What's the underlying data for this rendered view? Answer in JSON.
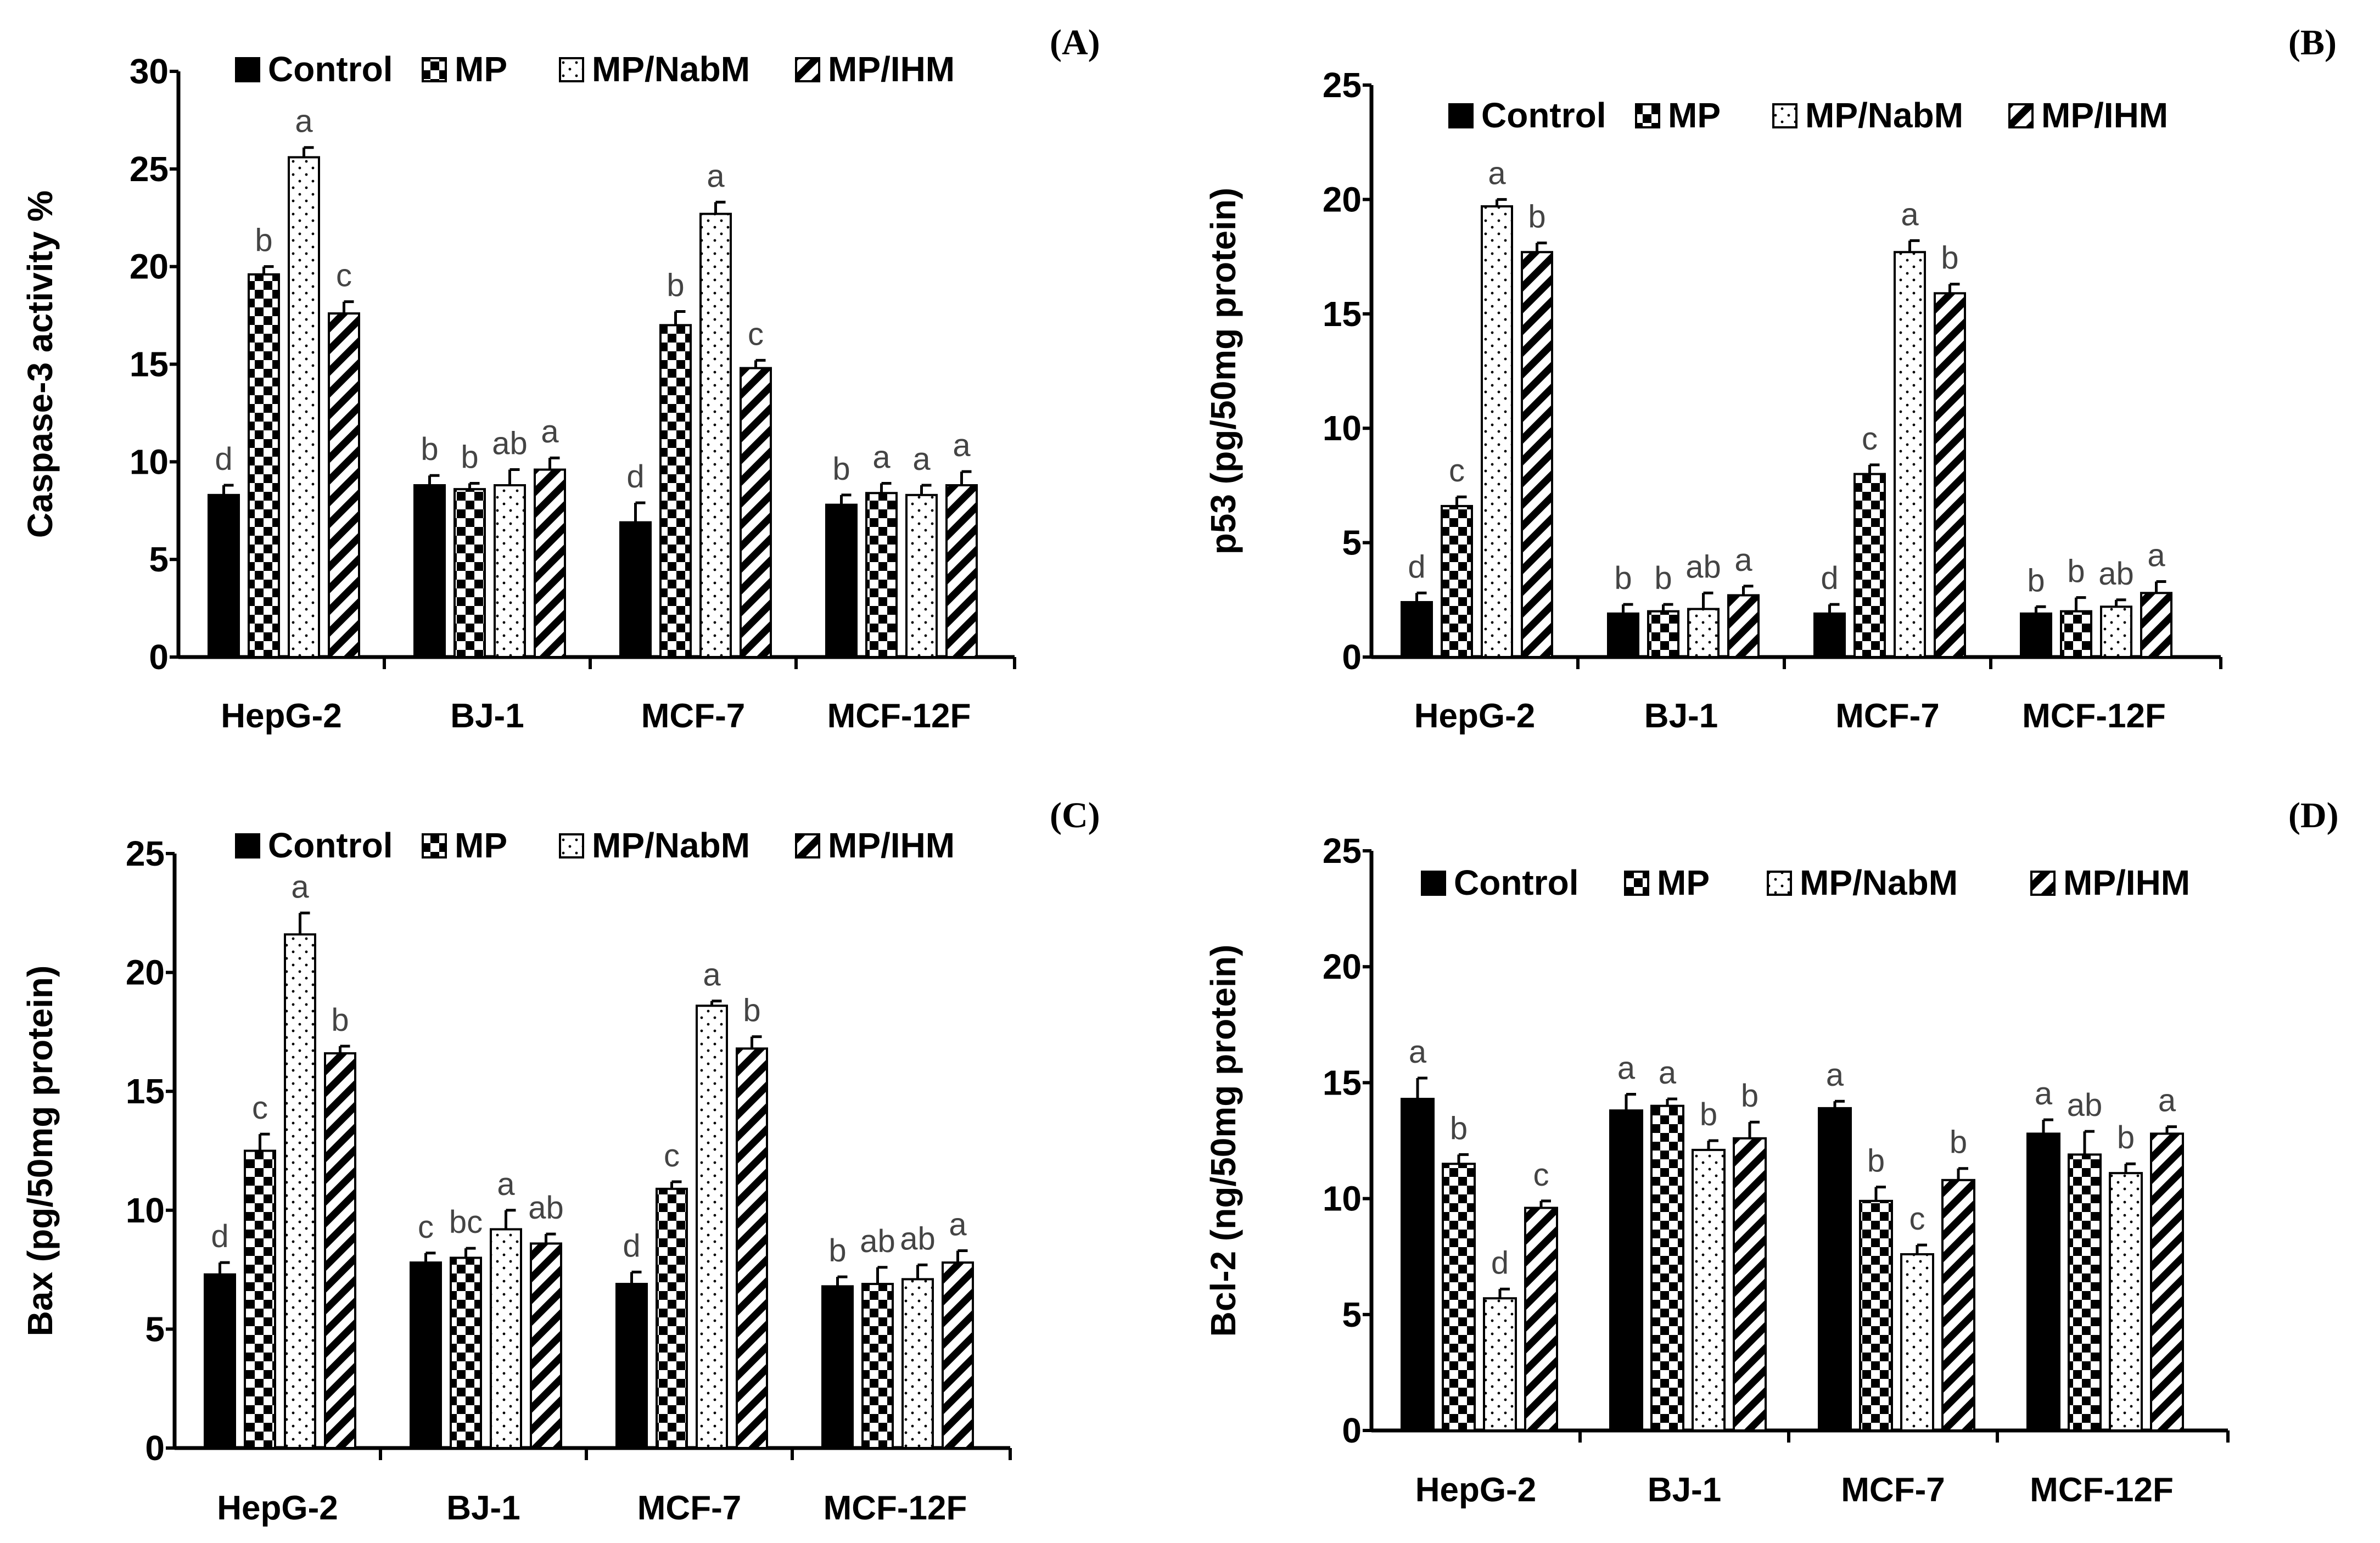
{
  "colors": {
    "ink": "#000000",
    "background": "#ffffff"
  },
  "series_names": [
    "Control",
    "MP",
    "MP/NabM",
    "MP/IHM"
  ],
  "series_patterns": [
    "solid",
    "checker",
    "dots",
    "diagonal"
  ],
  "chart_data": [
    {
      "panel": "(A)",
      "type": "bar",
      "ylabel": "Caspase-3 activity %",
      "ylim": [
        0,
        30
      ],
      "yticks": [
        0,
        5,
        10,
        15,
        20,
        25,
        30
      ],
      "legend_position": "top",
      "categories": [
        "HepG-2",
        "BJ-1",
        "MCF-7",
        "MCF-12F"
      ],
      "series": [
        {
          "name": "Control",
          "values": [
            8.3,
            8.8,
            6.9,
            7.8
          ],
          "errors": [
            0.5,
            0.5,
            1.0,
            0.5
          ],
          "letters": [
            "d",
            "b",
            "d",
            "b"
          ]
        },
        {
          "name": "MP",
          "values": [
            19.6,
            8.6,
            17.0,
            8.4
          ],
          "errors": [
            0.4,
            0.3,
            0.7,
            0.5
          ],
          "letters": [
            "b",
            "b",
            "b",
            "a"
          ]
        },
        {
          "name": "MP/NabM",
          "values": [
            25.6,
            8.8,
            22.7,
            8.3
          ],
          "errors": [
            0.5,
            0.8,
            0.6,
            0.5
          ],
          "letters": [
            "a",
            "ab",
            "a",
            "a"
          ]
        },
        {
          "name": "MP/IHM",
          "values": [
            17.6,
            9.6,
            14.8,
            8.8
          ],
          "errors": [
            0.6,
            0.6,
            0.4,
            0.7
          ],
          "letters": [
            "c",
            "a",
            "c",
            "a"
          ]
        }
      ]
    },
    {
      "panel": "(B)",
      "type": "bar",
      "ylabel": "p53 (pg/50mg protein)",
      "ylim": [
        0,
        25
      ],
      "yticks": [
        0,
        5,
        10,
        15,
        20,
        25
      ],
      "legend_position": "top",
      "categories": [
        "HepG-2",
        "BJ-1",
        "MCF-7",
        "MCF-12F"
      ],
      "series": [
        {
          "name": "Control",
          "values": [
            2.4,
            1.9,
            1.9,
            1.9
          ],
          "errors": [
            0.4,
            0.4,
            0.4,
            0.3
          ],
          "letters": [
            "d",
            "b",
            "d",
            "b"
          ]
        },
        {
          "name": "MP",
          "values": [
            6.6,
            2.0,
            8.0,
            2.0
          ],
          "errors": [
            0.4,
            0.3,
            0.4,
            0.6
          ],
          "letters": [
            "c",
            "b",
            "c",
            "b"
          ]
        },
        {
          "name": "MP/NabM",
          "values": [
            19.7,
            2.1,
            17.7,
            2.2
          ],
          "errors": [
            0.3,
            0.7,
            0.5,
            0.3
          ],
          "letters": [
            "a",
            "ab",
            "a",
            "ab"
          ]
        },
        {
          "name": "MP/IHM",
          "values": [
            17.7,
            2.7,
            15.9,
            2.8
          ],
          "errors": [
            0.4,
            0.4,
            0.4,
            0.5
          ],
          "letters": [
            "b",
            "a",
            "b",
            "a"
          ]
        }
      ]
    },
    {
      "panel": "(C)",
      "type": "bar",
      "ylabel": "Bax (pg/50mg protein)",
      "ylim": [
        0,
        25
      ],
      "yticks": [
        0,
        5,
        10,
        15,
        20,
        25
      ],
      "legend_position": "top",
      "categories": [
        "HepG-2",
        "BJ-1",
        "MCF-7",
        "MCF-12F"
      ],
      "series": [
        {
          "name": "Control",
          "values": [
            7.3,
            7.8,
            6.9,
            6.8
          ],
          "errors": [
            0.5,
            0.4,
            0.5,
            0.4
          ],
          "letters": [
            "d",
            "c",
            "d",
            "b"
          ]
        },
        {
          "name": "MP",
          "values": [
            12.5,
            8.0,
            10.9,
            6.9
          ],
          "errors": [
            0.7,
            0.4,
            0.3,
            0.7
          ],
          "letters": [
            "c",
            "bc",
            "c",
            "ab"
          ]
        },
        {
          "name": "MP/NabM",
          "values": [
            21.6,
            9.2,
            18.6,
            7.1
          ],
          "errors": [
            0.9,
            0.8,
            0.2,
            0.6
          ],
          "letters": [
            "a",
            "a",
            "a",
            "ab"
          ]
        },
        {
          "name": "MP/IHM",
          "values": [
            16.6,
            8.6,
            16.8,
            7.8
          ],
          "errors": [
            0.3,
            0.4,
            0.5,
            0.5
          ],
          "letters": [
            "b",
            "ab",
            "b",
            "a"
          ]
        }
      ]
    },
    {
      "panel": "(D)",
      "type": "bar",
      "ylabel": "Bcl-2 (ng/50mg protein)",
      "ylim": [
        0,
        25
      ],
      "yticks": [
        0,
        5,
        10,
        15,
        20,
        25
      ],
      "legend_position": "top",
      "categories": [
        "HepG-2",
        "BJ-1",
        "MCF-7",
        "MCF-12F"
      ],
      "series": [
        {
          "name": "Control",
          "values": [
            14.3,
            13.8,
            13.9,
            12.8
          ],
          "errors": [
            0.9,
            0.7,
            0.3,
            0.6
          ],
          "letters": [
            "a",
            "a",
            "a",
            "a"
          ]
        },
        {
          "name": "MP",
          "values": [
            11.5,
            14.0,
            9.9,
            11.9
          ],
          "errors": [
            0.4,
            0.3,
            0.6,
            1.0
          ],
          "letters": [
            "b",
            "a",
            "b",
            "ab"
          ]
        },
        {
          "name": "MP/NabM",
          "values": [
            5.7,
            12.1,
            7.6,
            11.1
          ],
          "errors": [
            0.4,
            0.4,
            0.4,
            0.4
          ],
          "letters": [
            "d",
            "b",
            "c",
            "b"
          ]
        },
        {
          "name": "MP/IHM",
          "values": [
            9.6,
            12.6,
            10.8,
            12.8
          ],
          "errors": [
            0.3,
            0.7,
            0.5,
            0.3
          ],
          "letters": [
            "c",
            "b",
            "b",
            "a"
          ]
        }
      ]
    }
  ]
}
